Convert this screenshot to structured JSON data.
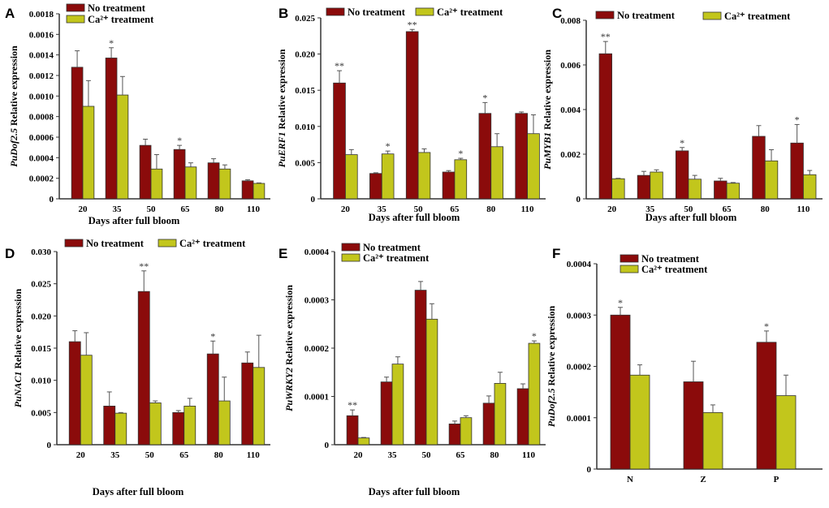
{
  "colors": {
    "no_treatment": "#8B0B0B",
    "ca_treatment": "#C2C61C",
    "axis": "#333333"
  },
  "legend": {
    "no": "No treatment",
    "ca": "Ca²⁺ treatment"
  },
  "xlabel": "Days after full bloom",
  "chart_data": [
    {
      "panel": "A",
      "type": "bar",
      "gene": "PuDof2.5",
      "ylabel_rest": " Relative expression",
      "xlabel": "Days after full bloom",
      "ylim": [
        0,
        0.0018
      ],
      "yticks": [
        "0",
        "0.0002",
        "0.0004",
        "0.0006",
        "0.0008",
        "0.0010",
        "0.0012",
        "0.0014",
        "0.0016",
        "0.0018"
      ],
      "categories": [
        "20",
        "35",
        "50",
        "65",
        "80",
        "110"
      ],
      "series": [
        {
          "name": "No treatment",
          "values": [
            0.00128,
            0.00137,
            0.00052,
            0.00048,
            0.00035,
            0.000175
          ],
          "errors": [
            0.00016,
            0.0001,
            6e-05,
            4e-05,
            4e-05,
            1e-05
          ],
          "marks": [
            "",
            "*",
            "",
            "*",
            "",
            ""
          ]
        },
        {
          "name": "Ca²⁺ treatment",
          "values": [
            0.0009,
            0.00101,
            0.00029,
            0.00031,
            0.00029,
            0.00015
          ],
          "errors": [
            0.00025,
            0.00018,
            0.00014,
            4e-05,
            4e-05,
            5e-06
          ],
          "marks": [
            "",
            "",
            "",
            "",
            "",
            ""
          ]
        }
      ]
    },
    {
      "panel": "B",
      "type": "bar",
      "gene": "PuERF1",
      "ylabel_rest": " Relative expression",
      "xlabel": "Days after full bloom",
      "ylim": [
        0,
        0.025
      ],
      "yticks": [
        "0",
        "0.005",
        "0.010",
        "0.015",
        "0.020",
        "0.025"
      ],
      "categories": [
        "20",
        "35",
        "50",
        "65",
        "80",
        "110"
      ],
      "series": [
        {
          "name": "No treatment",
          "values": [
            0.016,
            0.0035,
            0.0231,
            0.0037,
            0.0118,
            0.0118
          ],
          "errors": [
            0.0017,
            0.0001,
            0.0003,
            0.0002,
            0.0015,
            0.0002
          ],
          "marks": [
            "**",
            "",
            "**",
            "",
            "*",
            ""
          ]
        },
        {
          "name": "Ca²⁺ treatment",
          "values": [
            0.0061,
            0.0062,
            0.0064,
            0.0054,
            0.0072,
            0.009
          ],
          "errors": [
            0.0007,
            0.0004,
            0.0005,
            0.0002,
            0.0018,
            0.0026
          ],
          "marks": [
            "",
            "*",
            "",
            "*",
            "",
            ""
          ]
        }
      ]
    },
    {
      "panel": "C",
      "type": "bar",
      "gene": "PuMYB1",
      "ylabel_rest": " Relative expression",
      "xlabel": "Days after full bloom",
      "ylim": [
        0,
        0.008
      ],
      "yticks": [
        "0",
        "0.002",
        "0.004",
        "0.006",
        "0.008"
      ],
      "categories": [
        "20",
        "35",
        "50",
        "65",
        "80",
        "110"
      ],
      "series": [
        {
          "name": "No treatment",
          "values": [
            0.0065,
            0.00105,
            0.00215,
            0.0008,
            0.0028,
            0.0025
          ],
          "errors": [
            0.00055,
            0.00018,
            0.00015,
            0.00012,
            0.00048,
            0.00083
          ],
          "marks": [
            "**",
            "",
            "*",
            "",
            "",
            "*"
          ]
        },
        {
          "name": "Ca²⁺ treatment",
          "values": [
            0.0009,
            0.0012,
            0.00088,
            0.0007,
            0.0017,
            0.00108
          ],
          "errors": [
            2e-05,
            0.0001,
            0.00017,
            3e-05,
            0.0005,
            0.00019
          ],
          "marks": [
            "",
            "",
            "",
            "",
            "",
            ""
          ]
        }
      ]
    },
    {
      "panel": "D",
      "type": "bar",
      "gene": "PuNAC1",
      "ylabel_rest": " Relative expression",
      "xlabel": "Days after full bloom",
      "ylim": [
        0,
        0.03
      ],
      "yticks": [
        "0",
        "0.005",
        "0.010",
        "0.015",
        "0.020",
        "0.025",
        "0.030"
      ],
      "categories": [
        "20",
        "35",
        "50",
        "65",
        "80",
        "110"
      ],
      "series": [
        {
          "name": "No treatment",
          "values": [
            0.016,
            0.006,
            0.0238,
            0.005,
            0.0141,
            0.0127
          ],
          "errors": [
            0.0017,
            0.0022,
            0.0032,
            0.0003,
            0.002,
            0.0017
          ],
          "marks": [
            "",
            "",
            "**",
            "",
            "*",
            ""
          ]
        },
        {
          "name": "Ca²⁺ treatment",
          "values": [
            0.0139,
            0.0049,
            0.0065,
            0.006,
            0.0068,
            0.012
          ],
          "errors": [
            0.0035,
            0.0001,
            0.0003,
            0.0012,
            0.0037,
            0.005
          ],
          "marks": [
            "",
            "",
            "",
            "",
            "",
            ""
          ]
        }
      ]
    },
    {
      "panel": "E",
      "type": "bar",
      "gene": "PuWRKY2",
      "ylabel_rest": " Relative expression",
      "xlabel": "Days after full bloom",
      "ylim": [
        0,
        0.0004
      ],
      "yticks": [
        "0",
        "0.0001",
        "0.0002",
        "0.0003",
        "0.0004"
      ],
      "categories": [
        "20",
        "35",
        "50",
        "65",
        "80",
        "110"
      ],
      "series": [
        {
          "name": "No treatment",
          "values": [
            6e-05,
            0.00013,
            0.00032,
            4.3e-05,
            8.6e-05,
            0.000116
          ],
          "errors": [
            1.2e-05,
            1e-05,
            1.8e-05,
            6e-06,
            1.5e-05,
            1e-05
          ],
          "marks": [
            "**",
            "",
            "",
            "",
            "",
            ""
          ]
        },
        {
          "name": "Ca²⁺ treatment",
          "values": [
            1.4e-05,
            0.000167,
            0.00026,
            5.6e-05,
            0.000127,
            0.00021
          ],
          "errors": [
            1e-06,
            1.5e-05,
            3.2e-05,
            4e-06,
            2.3e-05,
            5e-06
          ],
          "marks": [
            "",
            "",
            "",
            "",
            "",
            "*"
          ]
        }
      ]
    },
    {
      "panel": "F",
      "type": "bar",
      "gene": "PuDof2.5",
      "ylabel_rest": " Relative expression",
      "xlabel": "",
      "ylim": [
        0,
        0.0004
      ],
      "yticks": [
        "0",
        "0.0001",
        "0.0002",
        "0.0003",
        "0.0004"
      ],
      "categories": [
        "N",
        "Z",
        "P"
      ],
      "series": [
        {
          "name": "No treatment",
          "values": [
            0.0003,
            0.00017,
            0.000247
          ],
          "errors": [
            1.5e-05,
            4e-05,
            2.2e-05
          ],
          "marks": [
            "*",
            "",
            "*"
          ]
        },
        {
          "name": "Ca²⁺ treatment",
          "values": [
            0.000183,
            0.00011,
            0.000143
          ],
          "errors": [
            2e-05,
            1.5e-05,
            4e-05
          ],
          "marks": [
            "",
            "",
            ""
          ]
        }
      ]
    }
  ]
}
